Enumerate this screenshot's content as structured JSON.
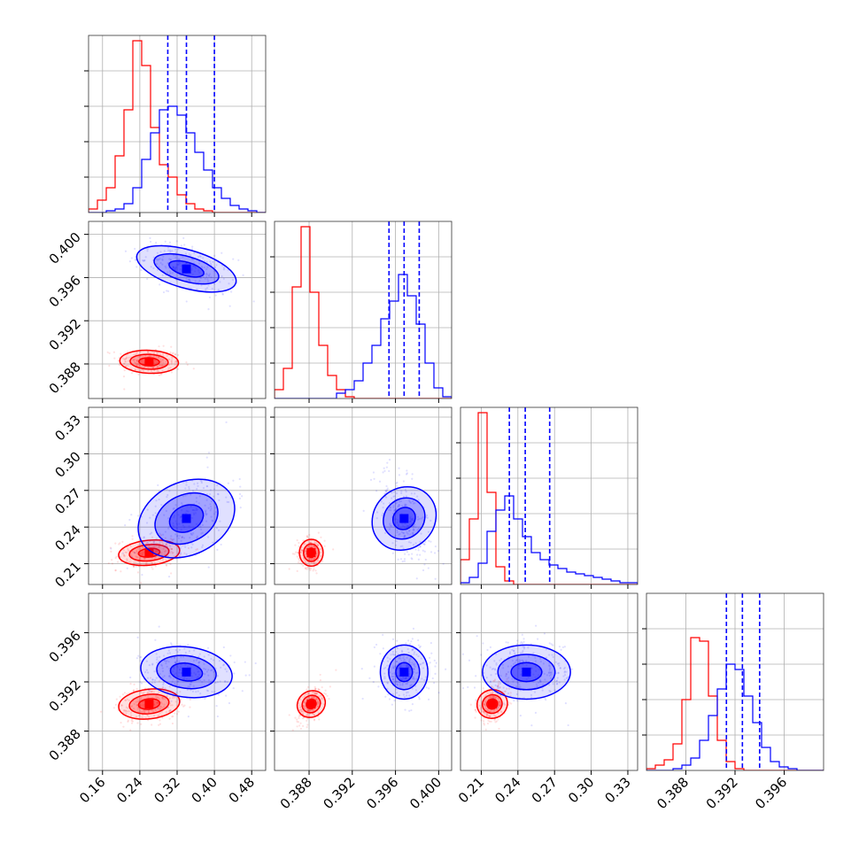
{
  "chart_data": {
    "type": "scatter",
    "title": "",
    "colors": {
      "red": "#ff0000",
      "blue": "#0000ff",
      "grid": "#b0b0b0"
    },
    "parameters": [
      {
        "xlim": [
          0.13,
          0.51
        ],
        "ticks": [
          0.16,
          0.24,
          0.32,
          0.4,
          0.48
        ],
        "tick_labels": [
          "0.16",
          "0.24",
          "0.32",
          "0.40",
          "0.48"
        ]
      },
      {
        "xlim": [
          0.3848,
          0.4012
        ],
        "ticks": [
          0.388,
          0.392,
          0.396,
          0.4
        ],
        "tick_labels": [
          "0.388",
          "0.392",
          "0.396",
          "0.400"
        ]
      },
      {
        "xlim": [
          0.193,
          0.338
        ],
        "ticks": [
          0.21,
          0.24,
          0.27,
          0.3,
          0.33
        ],
        "tick_labels": [
          "0.21",
          "0.24",
          "0.27",
          "0.30",
          "0.33"
        ]
      },
      {
        "xlim": [
          0.3848,
          0.3992
        ],
        "ticks": [
          0.388,
          0.392,
          0.396
        ],
        "tick_labels": [
          "0.388",
          "0.392",
          "0.396"
        ]
      }
    ],
    "series": [
      {
        "color": "#ff0000",
        "mean": [
          0.26,
          0.3882,
          0.219,
          0.3902
        ],
        "std": [
          0.03,
          0.00055,
          0.0055,
          0.00065
        ]
      },
      {
        "color": "#0000ff",
        "mean": [
          0.34,
          0.3968,
          0.247,
          0.3928
        ],
        "std": [
          0.045,
          0.0011,
          0.018,
          0.0011
        ]
      }
    ],
    "quantiles_blue": [
      [
        0.3,
        0.34,
        0.4
      ],
      [
        0.3954,
        0.3968,
        0.3982
      ],
      [
        0.233,
        0.246,
        0.266
      ],
      [
        0.3913,
        0.3926,
        0.394
      ]
    ],
    "histograms": [
      {
        "red": [
          0.02,
          0.07,
          0.14,
          0.32,
          0.58,
          0.97,
          0.83,
          0.48,
          0.27,
          0.2,
          0.1,
          0.05,
          0.02,
          0.01,
          0,
          0,
          0,
          0,
          0,
          0
        ],
        "blue": [
          0,
          0,
          0.01,
          0.02,
          0.05,
          0.14,
          0.3,
          0.45,
          0.58,
          0.6,
          0.55,
          0.45,
          0.34,
          0.24,
          0.14,
          0.08,
          0.04,
          0.02,
          0.01,
          0
        ]
      },
      {
        "red": [
          0.05,
          0.17,
          0.63,
          0.97,
          0.6,
          0.3,
          0.13,
          0.05,
          0.01,
          0,
          0,
          0,
          0,
          0,
          0,
          0,
          0,
          0,
          0,
          0
        ],
        "blue": [
          0,
          0,
          0,
          0,
          0,
          0,
          0,
          0.03,
          0.05,
          0.1,
          0.2,
          0.3,
          0.45,
          0.55,
          0.7,
          0.58,
          0.42,
          0.2,
          0.06,
          0.01
        ]
      },
      {
        "red": [
          0.14,
          0.37,
          0.97,
          0.52,
          0.1,
          0.02,
          0,
          0,
          0,
          0,
          0,
          0,
          0,
          0,
          0,
          0,
          0,
          0,
          0,
          0
        ],
        "blue": [
          0.01,
          0.04,
          0.12,
          0.3,
          0.42,
          0.5,
          0.37,
          0.27,
          0.18,
          0.14,
          0.11,
          0.09,
          0.07,
          0.06,
          0.05,
          0.04,
          0.03,
          0.02,
          0.01,
          0.01
        ]
      },
      {
        "red": [
          0.01,
          0.03,
          0.06,
          0.15,
          0.4,
          0.75,
          0.73,
          0.42,
          0.17,
          0.05,
          0.01,
          0,
          0,
          0,
          0,
          0,
          0,
          0,
          0,
          0
        ],
        "blue": [
          0,
          0,
          0,
          0.01,
          0.03,
          0.07,
          0.17,
          0.31,
          0.46,
          0.6,
          0.57,
          0.42,
          0.27,
          0.13,
          0.05,
          0.02,
          0.01,
          0,
          0,
          0
        ]
      }
    ],
    "correlations": {
      "red": {
        "1,0": -0.1,
        "2,0": 0.2,
        "2,1": 0.0,
        "3,0": 0.2,
        "3,1": 0.5,
        "3,2": 0.3
      },
      "blue": {
        "1,0": -0.5,
        "2,0": 0.45,
        "2,1": -0.6,
        "3,0": -0.2,
        "3,1": 0.0,
        "3,2": 0.0
      }
    },
    "grid": true,
    "legend": "none"
  }
}
